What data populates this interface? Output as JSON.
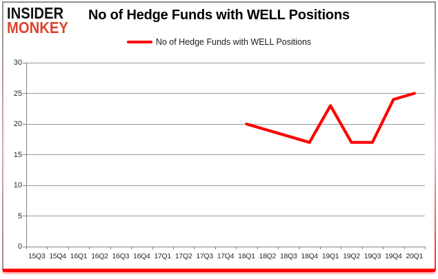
{
  "branding": {
    "logo_line1": "INSIDER",
    "logo_line2": "MONKEY",
    "logo_monkey_color": "#d9442e"
  },
  "header": {
    "title": "No of Hedge Funds with WELL Positions"
  },
  "legend": {
    "label": "No of Hedge Funds with WELL Positions",
    "swatch_color": "#ff0000"
  },
  "chart_data": {
    "type": "line",
    "title": "No of Hedge Funds with WELL Positions",
    "categories": [
      "15Q3",
      "15Q4",
      "16Q1",
      "16Q2",
      "16Q3",
      "16Q4",
      "17Q1",
      "17Q2",
      "17Q3",
      "17Q4",
      "18Q1",
      "18Q2",
      "18Q3",
      "18Q4",
      "19Q1",
      "19Q2",
      "19Q3",
      "19Q4",
      "20Q1"
    ],
    "series": [
      {
        "name": "No of Hedge Funds with WELL Positions",
        "color": "#ff0000",
        "values": [
          null,
          null,
          null,
          null,
          null,
          null,
          null,
          null,
          null,
          null,
          20,
          19,
          18,
          17,
          23,
          17,
          17,
          24,
          25
        ]
      }
    ],
    "xlabel": "",
    "ylabel": "",
    "ylim": [
      0,
      30
    ],
    "yticks": [
      0,
      5,
      10,
      15,
      20,
      25,
      30
    ],
    "grid": true,
    "legend_position": "top-center"
  },
  "colors": {
    "line": "#ff0000",
    "grid": "#999999",
    "axis": "#808080",
    "bottom_bar": "#ff0000"
  }
}
